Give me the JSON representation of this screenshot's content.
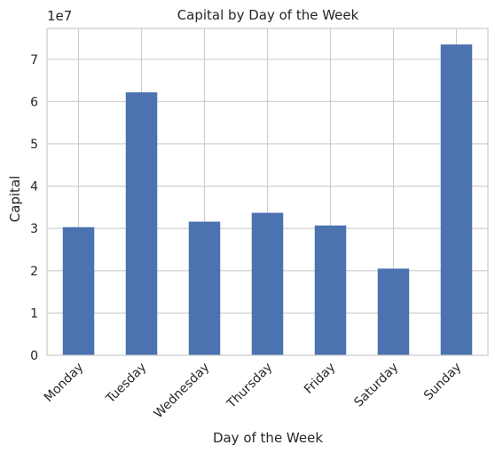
{
  "chart_data": {
    "type": "bar",
    "title": "Capital by Day of the Week",
    "xlabel": "Day of the Week",
    "ylabel": "Capital",
    "offset_label": "1e7",
    "categories": [
      "Monday",
      "Tuesday",
      "Wednesday",
      "Thursday",
      "Friday",
      "Saturday",
      "Sunday"
    ],
    "values": [
      30300000,
      62200000,
      31600000,
      33700000,
      30700000,
      20500000,
      73500000
    ],
    "yticks": [
      0,
      1,
      2,
      3,
      4,
      5,
      6,
      7
    ],
    "ytick_scale": 10000000,
    "ylim": [
      0,
      77300000
    ],
    "grid": true,
    "bar_color": "#4c72b0",
    "grid_color": "#cccccc"
  }
}
